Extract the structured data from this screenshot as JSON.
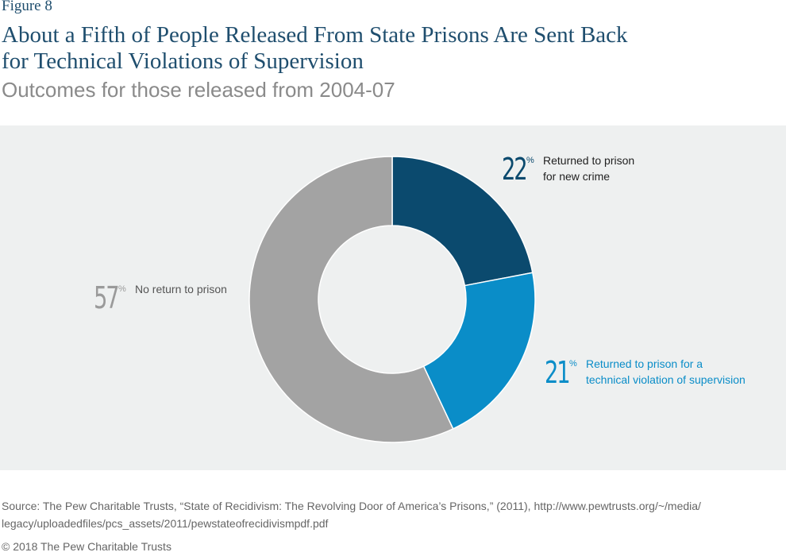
{
  "figure_label": "Figure 8",
  "chart_data": {
    "type": "donut",
    "title": "About a Fifth of People Released From State Prisons Are Sent Back\nfor Technical Violations of Supervision",
    "subtitle": "Outcomes for those released from 2004-07",
    "categories": [
      "Returned to prison\nfor new crime",
      "Returned to prison for a\ntechnical violation of supervision",
      "No return to prison"
    ],
    "values": [
      22,
      21,
      57
    ],
    "unit": "%",
    "colors": [
      "#0b4a6e",
      "#0a8dc8",
      "#a3a3a3"
    ]
  },
  "source": "Source: The Pew Charitable Trusts, “State of Recidivism: The Revolving Door of America’s Prisons,” (2011), http://www.pewtrusts.org/~/media/\nlegacy/uploadedfiles/pcs_assets/2011/pewstateofrecidivismpdf.pdf",
  "copyright": "© 2018 The Pew Charitable Trusts"
}
